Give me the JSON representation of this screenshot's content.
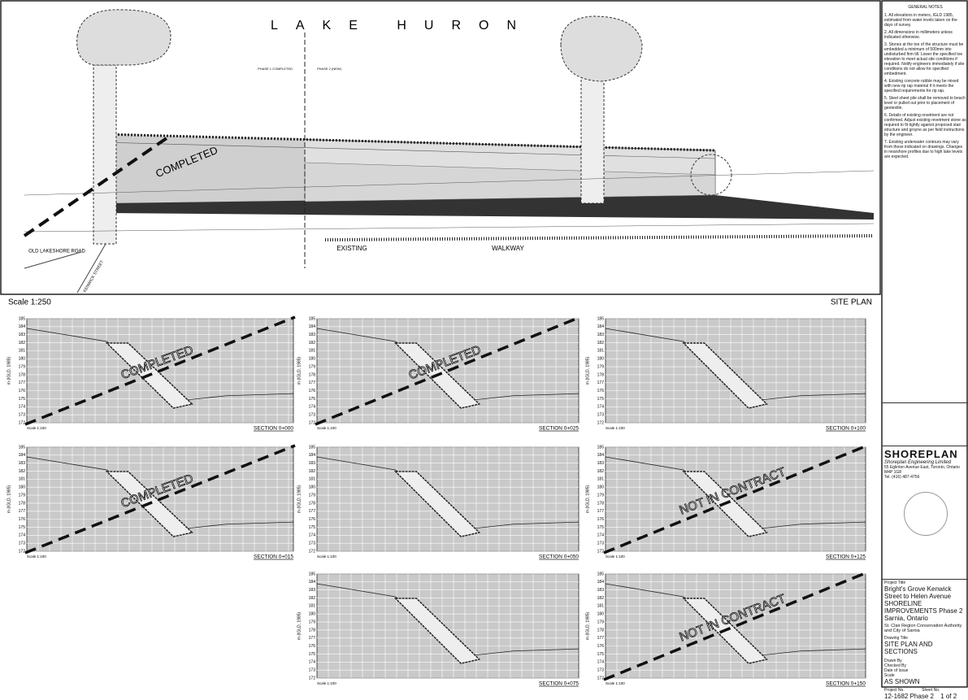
{
  "site_plan": {
    "lake_label": "LAKE HURON",
    "completed": "COMPLETED",
    "existing": "EXISTING",
    "walkway": "WALKWAY",
    "road": "OLD LAKESHORE ROAD",
    "street": "KENWICK STREET",
    "phase_1": "PHASE 1 COMPLETED",
    "phase_2": "PHASE 2 (NEW)",
    "scale": "Scale 1:250",
    "title": "SITE PLAN"
  },
  "section_common": {
    "y_axis_label": "m (IGLD, 1985)",
    "scale": "Scale 1:100",
    "yticks": [
      185,
      184,
      183,
      182,
      181,
      180,
      179,
      178,
      177,
      176,
      175,
      174,
      173,
      172
    ]
  },
  "sections": [
    {
      "label": "SECTION 0+000",
      "status": "COMPLETED"
    },
    {
      "label": "SECTION 0+025",
      "status": "COMPLETED"
    },
    {
      "label": "SECTION 0+100"
    },
    {
      "label": "SECTION  0+015",
      "status": "COMPLETED"
    },
    {
      "label": "SECTION 0+050"
    },
    {
      "label": "SECTION 0+125",
      "status": "NOT IN CONTRACT"
    },
    {
      "label": "SECTION 0+075"
    },
    {
      "label": "SECTION 0+150",
      "status": "NOT IN CONTRACT"
    }
  ],
  "notes": {
    "title": "GENERAL NOTES",
    "items": [
      "1. All elevations in meters, IGLD 1985, estimated from water levels taken on the days of survey.",
      "2. All dimensions in millimeters unless indicated otherwise.",
      "3. Stones at the toe of the structure must be embedded a minimum of 500mm into undisturbed firm till. Lower the specified toe elevation to meet actual site conditions if required. Notify engineers immediately if site conditions do not allow for specified embedment.",
      "4. Existing concrete rubble may be mixed with new rip rap material if it meets the specified requirements for rip rap.",
      "5. Steel sheet pile shall be removed to beach level or pulled out prior to placement of geotextile.",
      "6. Details of existing revetment are not confirmed. Adjust existing revetment stone as required to fit tightly against proposed stair structure and groyne as per field instructions by the engineer.",
      "7. Existing underwater contours may vary from those indicated on drawings. Changes in nearshore profiles due to high lake levels are expected."
    ]
  },
  "title_block": {
    "logo": "SHOREPLAN",
    "company": "Shoreplan Engineering Limited",
    "address": "55 Eglinton Avenue East, Toronto, Ontario M4P 1G8",
    "phone": "Tel. (416) 487-4756",
    "project_title_label": "Project Title",
    "project_1": "Bright's Grove Kenwick Street to Helen Avenue",
    "project_2": "SHORELINE IMPROVEMENTS Phase 2",
    "project_3": "Sarnia, Ontario",
    "client": "St. Clair Region Conservation Authority and City of Sarnia",
    "drawing_title_label": "Drawing Title",
    "drawing_title": "SITE PLAN AND SECTIONS",
    "drawn_by": "Drawn By",
    "checked_by": "Checked By",
    "date_of_issue": "Date of Issue",
    "scale_label": "Scale",
    "scale": "AS SHOWN",
    "project_no_label": "Project No.",
    "project_no": "12-1682 Phase 2",
    "sheet_no_label": "Sheet No.",
    "sheet_no": "1 of 2"
  }
}
